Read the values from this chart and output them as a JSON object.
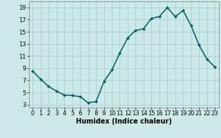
{
  "x": [
    0,
    1,
    2,
    3,
    4,
    5,
    6,
    7,
    8,
    9,
    10,
    11,
    12,
    13,
    14,
    15,
    16,
    17,
    18,
    19,
    20,
    21,
    22,
    23
  ],
  "y": [
    8.5,
    7.2,
    6.0,
    5.2,
    4.6,
    4.5,
    4.3,
    3.3,
    3.5,
    6.8,
    8.7,
    11.5,
    14.0,
    15.2,
    15.5,
    17.2,
    17.5,
    19.0,
    17.5,
    18.5,
    16.0,
    12.8,
    10.5,
    9.2
  ],
  "line_color": "#006666",
  "marker": "D",
  "marker_size": 2.0,
  "bg_color": "#cce8e8",
  "grid_color": "#aacccc",
  "xlabel": "Humidex (Indice chaleur)",
  "xlim": [
    -0.5,
    23.5
  ],
  "ylim": [
    2.5,
    20.0
  ],
  "yticks": [
    3,
    5,
    7,
    9,
    11,
    13,
    15,
    17,
    19
  ],
  "xticks": [
    0,
    1,
    2,
    3,
    4,
    5,
    6,
    7,
    8,
    9,
    10,
    11,
    12,
    13,
    14,
    15,
    16,
    17,
    18,
    19,
    20,
    21,
    22,
    23
  ],
  "xlabel_fontsize": 7,
  "tick_fontsize": 6,
  "line_width": 1.2
}
